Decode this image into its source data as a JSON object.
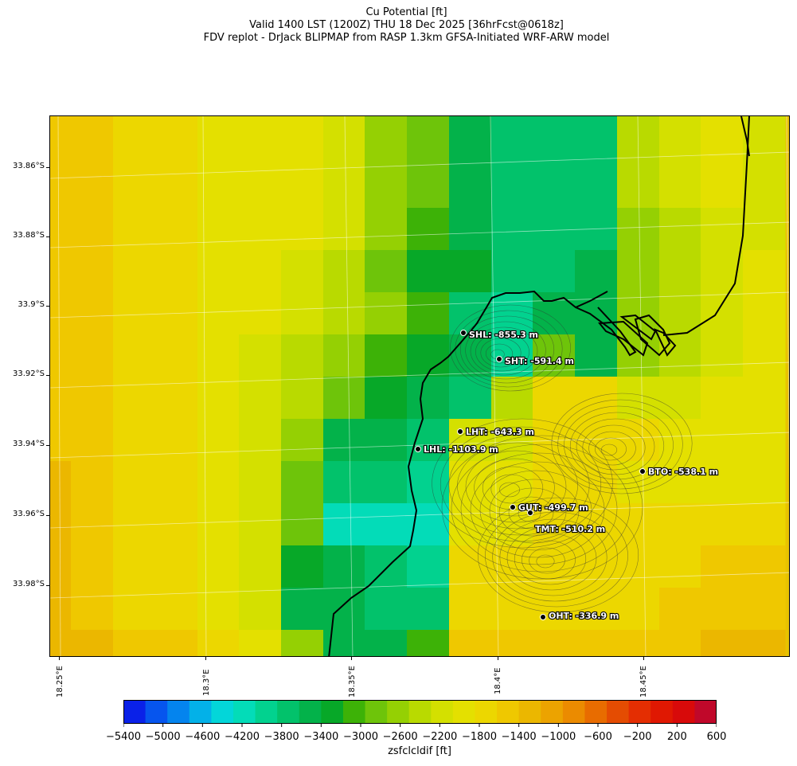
{
  "title": {
    "line1": "Cu Potential [ft]",
    "line2": "Valid 1400 LST (1200Z) THU 18 Dec 2025 [36hrFcst@0618z]",
    "line3": "FDV replot - DrJack BLIPMAP from RASP 1.3km GFSA-Initiated WRF-ARW model"
  },
  "axes": {
    "y_ticks": [
      "33.86°S",
      "33.88°S",
      "33.9°S",
      "33.92°S",
      "33.94°S",
      "33.96°S",
      "33.98°S"
    ],
    "x_ticks": [
      "18.25°E",
      "18.3°E",
      "18.35°E",
      "18.4°E",
      "18.45°E"
    ]
  },
  "stations": [
    {
      "name": "SHL",
      "value": "SHL: -855.3 m"
    },
    {
      "name": "SHT",
      "value": "SHT: -591.4 m"
    },
    {
      "name": "LHT",
      "value": "LHT: -643.3 m"
    },
    {
      "name": "LHL",
      "value": "LHL: -1103.9 m"
    },
    {
      "name": "BTO",
      "value": "BTO: -538.1 m"
    },
    {
      "name": "GUT",
      "value": "GUT: -499.7 m"
    },
    {
      "name": "TMT",
      "value": "TMT: -510.2 m"
    },
    {
      "name": "OHT",
      "value": "OHT: -336.9 m"
    }
  ],
  "colorbar": {
    "label": "zsfclcldif [ft]",
    "tick_labels": [
      "-5400",
      "-5000",
      "-4600",
      "-4200",
      "-3800",
      "-3400",
      "-3000",
      "-2600",
      "-2200",
      "-1800",
      "-1400",
      "-1000",
      "-600",
      "-200",
      "200",
      "600"
    ],
    "range": [
      -5400,
      600
    ],
    "colors": [
      "#0a21e8",
      "#0655ee",
      "#0484ee",
      "#03b1e8",
      "#03d6d9",
      "#03dcb8",
      "#02d28f",
      "#02c26b",
      "#03b24a",
      "#07a828",
      "#3db207",
      "#6ec40a",
      "#95d003",
      "#b9da00",
      "#d4e000",
      "#e4e000",
      "#ecd700",
      "#efc800",
      "#ebb700",
      "#eca300",
      "#eb8b00",
      "#e86c00",
      "#e44c02",
      "#e42e02",
      "#e01802",
      "#d80a0a",
      "#c0082a"
    ]
  }
}
